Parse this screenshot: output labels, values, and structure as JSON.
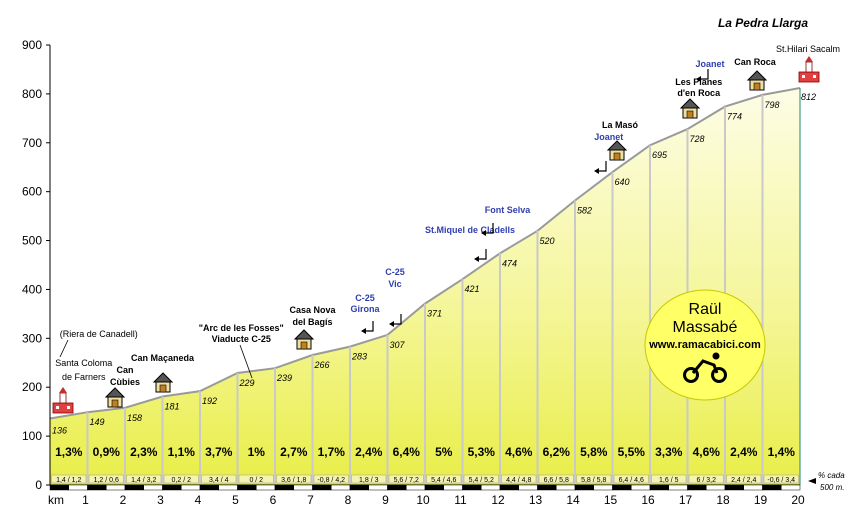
{
  "chart_data": {
    "type": "area",
    "title": "La Pedra Llarga",
    "xlabel": "km",
    "ylabel": "",
    "xlim": [
      0,
      20
    ],
    "ylim": [
      0,
      900
    ],
    "xticks": [
      1,
      2,
      3,
      4,
      5,
      6,
      7,
      8,
      9,
      10,
      11,
      12,
      13,
      14,
      15,
      16,
      17,
      18,
      19,
      20
    ],
    "yticks": [
      0,
      100,
      200,
      300,
      400,
      500,
      600,
      700,
      800,
      900
    ],
    "segment_note": "% cada 500 m.",
    "points": [
      {
        "x": 0,
        "y": 136,
        "label": "136"
      },
      {
        "x": 1,
        "y": 149,
        "label": "149"
      },
      {
        "x": 2,
        "y": 158,
        "label": "158"
      },
      {
        "x": 3,
        "y": 181,
        "label": "181"
      },
      {
        "x": 4,
        "y": 192,
        "label": "192"
      },
      {
        "x": 5,
        "y": 229,
        "label": "229"
      },
      {
        "x": 6,
        "y": 239,
        "label": "239"
      },
      {
        "x": 7,
        "y": 266,
        "label": "266"
      },
      {
        "x": 8,
        "y": 283,
        "label": "283"
      },
      {
        "x": 9,
        "y": 307,
        "label": "307"
      },
      {
        "x": 10,
        "y": 371,
        "label": "371"
      },
      {
        "x": 11,
        "y": 421,
        "label": "421"
      },
      {
        "x": 12,
        "y": 474,
        "label": "474"
      },
      {
        "x": 13,
        "y": 520,
        "label": "520"
      },
      {
        "x": 14,
        "y": 582,
        "label": "582"
      },
      {
        "x": 15,
        "y": 640,
        "label": "640"
      },
      {
        "x": 16,
        "y": 695,
        "label": "695"
      },
      {
        "x": 17,
        "y": 728,
        "label": "728"
      },
      {
        "x": 18,
        "y": 774,
        "label": "774"
      },
      {
        "x": 19,
        "y": 798,
        "label": "798"
      },
      {
        "x": 20,
        "y": 812,
        "label": "812"
      }
    ],
    "segments": [
      {
        "grade": "1,3%",
        "sub": "1,4 / 1,2"
      },
      {
        "grade": "0,9%",
        "sub": "1,2 / 0,6"
      },
      {
        "grade": "2,3%",
        "sub": "1,4 / 3,2"
      },
      {
        "grade": "1,1%",
        "sub": "0,2 / 2"
      },
      {
        "grade": "3,7%",
        "sub": "3,4 / 4"
      },
      {
        "grade": "1%",
        "sub": "0 / 2"
      },
      {
        "grade": "2,7%",
        "sub": "3,6 / 1,8"
      },
      {
        "grade": "1,7%",
        "sub": "-0,8 / 4,2"
      },
      {
        "grade": "2,4%",
        "sub": "1,8 / 3"
      },
      {
        "grade": "6,4%",
        "sub": "5,6 / 7,2"
      },
      {
        "grade": "5%",
        "sub": "5,4 / 4,6"
      },
      {
        "grade": "5,3%",
        "sub": "5,4 / 5,2"
      },
      {
        "grade": "4,6%",
        "sub": "4,4 / 4,8"
      },
      {
        "grade": "6,2%",
        "sub": "6,6 / 5,8"
      },
      {
        "grade": "5,8%",
        "sub": "5,8 / 5,8"
      },
      {
        "grade": "5,5%",
        "sub": "6,4 / 4,6"
      },
      {
        "grade": "3,3%",
        "sub": "1,6 / 5"
      },
      {
        "grade": "4,6%",
        "sub": "6 / 3,2"
      },
      {
        "grade": "2,4%",
        "sub": "2,4 / 2,4"
      },
      {
        "grade": "1,4%",
        "sub": "-0,6 / 3,4"
      }
    ],
    "places": [
      {
        "text": "St.Hilari Sacalm",
        "km": 20,
        "style": "place"
      },
      {
        "text": "Can Roca",
        "km": 18.8,
        "style": "placeb"
      },
      {
        "text": "Les Planes",
        "km": 17.3,
        "style": "placeb"
      },
      {
        "text": "d'en Roca",
        "km": 17.3,
        "style": "placeb"
      },
      {
        "text": "La Masó",
        "km": 15.2,
        "style": "placeb"
      },
      {
        "text": "Casa Nova",
        "km": 7.0,
        "style": "placeb"
      },
      {
        "text": "del Bagís",
        "km": 7.0,
        "style": "placeb"
      },
      {
        "text": "\"Arc de les Fosses\"",
        "km": 5.1,
        "style": "placeb"
      },
      {
        "text": "Viaducte C-25",
        "km": 5.1,
        "style": "placeb"
      },
      {
        "text": "Can Maçaneda",
        "km": 3.0,
        "style": "placeb"
      },
      {
        "text": "Can",
        "km": 2.0,
        "style": "placeb"
      },
      {
        "text": "Cùbies",
        "km": 2.0,
        "style": "placeb"
      },
      {
        "text": "(Riera de Canadell)",
        "km": 1.3,
        "style": "place"
      },
      {
        "text": "Santa Coloma",
        "km": 0.9,
        "style": "place"
      },
      {
        "text": "de Farners",
        "km": 0.9,
        "style": "place"
      }
    ],
    "roads": [
      {
        "text": "Joanet",
        "km": 17.6
      },
      {
        "text": "Joanet",
        "km": 14.9
      },
      {
        "text": "Font Selva",
        "km": 12.2
      },
      {
        "text": "St.Miquel de Cladells",
        "km": 11.2
      },
      {
        "text": "C-25",
        "km": 9.2
      },
      {
        "text": "Vic",
        "km": 9.2
      },
      {
        "text": "C-25",
        "km": 8.4
      },
      {
        "text": "Girona",
        "km": 8.4
      }
    ],
    "author_badge": {
      "line1": "Raül",
      "line2": "Massabé",
      "web": "www.ramacabici.com"
    }
  },
  "colors": {
    "fill_top": "#e8ee48",
    "fill_bottom": "#fdfde6",
    "axis": "#000000",
    "road_text": "#2f3fb0",
    "badge": "#ffff66"
  }
}
